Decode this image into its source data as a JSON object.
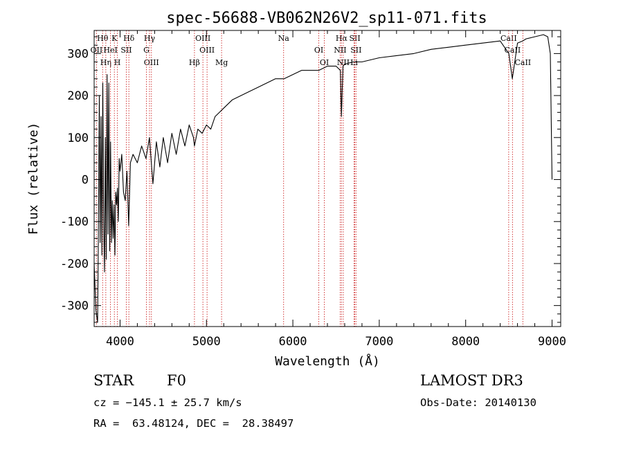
{
  "chart_data": {
    "type": "line",
    "title": "spec-56688-VB062N26V2_sp11-071.fits",
    "xlabel": "Wavelength (Å)",
    "ylabel": "Flux (relative)",
    "xlim": [
      3700,
      9100
    ],
    "ylim": [
      -350,
      355
    ],
    "xticks": [
      4000,
      5000,
      6000,
      7000,
      8000,
      9000
    ],
    "yticks": [
      -300,
      -200,
      -100,
      0,
      100,
      200,
      300
    ],
    "series": [
      {
        "name": "flux",
        "x": [
          3700,
          3720,
          3740,
          3750,
          3760,
          3770,
          3780,
          3790,
          3800,
          3810,
          3820,
          3830,
          3840,
          3850,
          3860,
          3870,
          3880,
          3890,
          3900,
          3910,
          3920,
          3930,
          3940,
          3950,
          3960,
          3970,
          3980,
          3990,
          4000,
          4020,
          4040,
          4060,
          4080,
          4100,
          4120,
          4150,
          4200,
          4250,
          4300,
          4340,
          4380,
          4420,
          4460,
          4500,
          4550,
          4600,
          4650,
          4700,
          4750,
          4800,
          4850,
          4861,
          4900,
          4950,
          5000,
          5050,
          5100,
          5150,
          5200,
          5300,
          5400,
          5500,
          5600,
          5700,
          5800,
          5900,
          6000,
          6100,
          6200,
          6300,
          6400,
          6500,
          6550,
          6562,
          6580,
          6600,
          6700,
          6800,
          6900,
          7000,
          7200,
          7400,
          7600,
          7800,
          8000,
          8200,
          8400,
          8500,
          8540,
          8600,
          8660,
          8700,
          8800,
          8900,
          8950,
          8980,
          9000
        ],
        "y": [
          -200,
          -310,
          -340,
          -120,
          200,
          -150,
          150,
          -180,
          230,
          -100,
          -220,
          100,
          -190,
          250,
          -130,
          230,
          -170,
          90,
          -150,
          -50,
          -140,
          -60,
          -180,
          -30,
          -60,
          -20,
          -100,
          50,
          20,
          60,
          -30,
          -50,
          20,
          -110,
          40,
          60,
          40,
          80,
          50,
          100,
          -10,
          90,
          30,
          100,
          40,
          110,
          60,
          120,
          80,
          130,
          100,
          80,
          120,
          110,
          130,
          120,
          150,
          160,
          170,
          190,
          200,
          210,
          220,
          230,
          240,
          240,
          250,
          260,
          260,
          260,
          270,
          270,
          260,
          150,
          270,
          275,
          280,
          280,
          285,
          290,
          295,
          300,
          310,
          315,
          320,
          325,
          330,
          300,
          240,
          325,
          330,
          335,
          340,
          345,
          340,
          300,
          0
        ]
      }
    ],
    "spectral_lines": [
      {
        "label": "Hθ",
        "wavelength": 3798
      },
      {
        "label": "OII",
        "wavelength": 3727
      },
      {
        "label": "Hη",
        "wavelength": 3835
      },
      {
        "label": "K",
        "wavelength": 3934
      },
      {
        "label": "HeI",
        "wavelength": 3889
      },
      {
        "label": "H",
        "wavelength": 3969
      },
      {
        "label": "Hδ",
        "wavelength": 4102
      },
      {
        "label": "SII",
        "wavelength": 4072
      },
      {
        "label": "OIII",
        "wavelength": 4363
      },
      {
        "label": "Hγ",
        "wavelength": 4341
      },
      {
        "label": "G",
        "wavelength": 4305
      },
      {
        "label": "Hβ",
        "wavelength": 4861
      },
      {
        "label": "OIII",
        "wavelength": 4959
      },
      {
        "label": "OIII",
        "wavelength": 5007
      },
      {
        "label": "Mg",
        "wavelength": 5175
      },
      {
        "label": "Na",
        "wavelength": 5893
      },
      {
        "label": "OI",
        "wavelength": 6300
      },
      {
        "label": "OI",
        "wavelength": 6364
      },
      {
        "label": "Hα",
        "wavelength": 6563
      },
      {
        "label": "NII",
        "wavelength": 6548
      },
      {
        "label": "NII",
        "wavelength": 6584
      },
      {
        "label": "SII",
        "wavelength": 6717
      },
      {
        "label": "SII",
        "wavelength": 6731
      },
      {
        "label": "Li",
        "wavelength": 6708
      },
      {
        "label": "CaII",
        "wavelength": 8498
      },
      {
        "label": "CaII",
        "wavelength": 8542
      },
      {
        "label": "CaII",
        "wavelength": 8662
      }
    ]
  },
  "info": {
    "object_class": "STAR",
    "subclass": "F0",
    "survey": "LAMOST DR3",
    "cz": "cz = −145.1 ± 25.7 km/s",
    "obs_date": "Obs-Date: 20140130",
    "coords": "RA =  63.48124, DEC =  28.38497"
  }
}
